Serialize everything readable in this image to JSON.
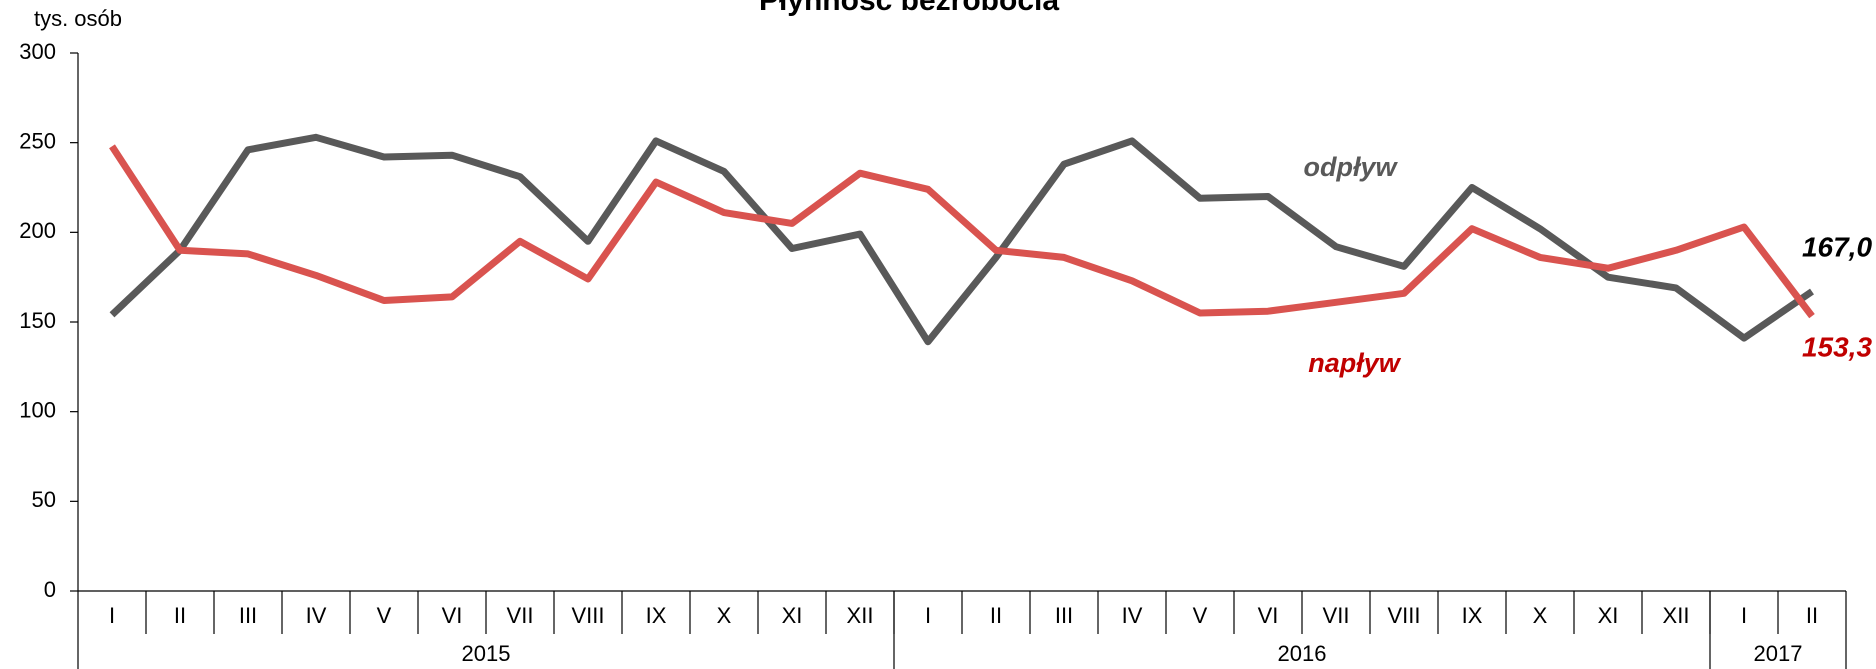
{
  "chart_data": {
    "type": "line",
    "title": "Płynność bezrobocia",
    "y_label": "tys. osób",
    "categories": [
      "I",
      "II",
      "III",
      "IV",
      "V",
      "VI",
      "VII",
      "VIII",
      "IX",
      "X",
      "XI",
      "XII",
      "I",
      "II",
      "III",
      "IV",
      "V",
      "VI",
      "VII",
      "VIII",
      "IX",
      "X",
      "XI",
      "XII",
      "I",
      "II"
    ],
    "year_groups": [
      {
        "label": "2015",
        "size": 12
      },
      {
        "label": "2016",
        "size": 12
      },
      {
        "label": "2017",
        "size": 2
      }
    ],
    "series": [
      {
        "name": "odpływ",
        "color": "#595959",
        "label_color": "#595959",
        "end_label_color": "#000000",
        "values": [
          154,
          190,
          246,
          253,
          242,
          243,
          231,
          195,
          251,
          234,
          191,
          199,
          139,
          186,
          238,
          251,
          219,
          220,
          192,
          181,
          225,
          202,
          175,
          169,
          141,
          167.0
        ],
        "value_labels": [
          null,
          null,
          null,
          null,
          null,
          null,
          null,
          null,
          null,
          null,
          null,
          null,
          null,
          null,
          null,
          null,
          null,
          null,
          null,
          null,
          null,
          null,
          null,
          null,
          null,
          "167,0"
        ]
      },
      {
        "name": "napływ",
        "color": "#d9534f",
        "label_color": "#c00000",
        "end_label_color": "#c00000",
        "values": [
          248,
          190,
          188,
          176,
          162,
          164,
          195,
          174,
          228,
          211,
          205,
          233,
          224,
          190,
          186,
          173,
          155,
          156,
          161,
          166,
          202,
          186,
          180,
          190,
          203,
          153.3
        ],
        "value_labels": [
          null,
          null,
          null,
          null,
          null,
          null,
          null,
          null,
          null,
          null,
          null,
          null,
          null,
          null,
          null,
          null,
          null,
          null,
          null,
          null,
          null,
          null,
          null,
          null,
          null,
          "153,3"
        ]
      }
    ],
    "ylim": [
      0,
      300
    ],
    "yticks": [
      0,
      50,
      100,
      150,
      200,
      250,
      300
    ]
  }
}
